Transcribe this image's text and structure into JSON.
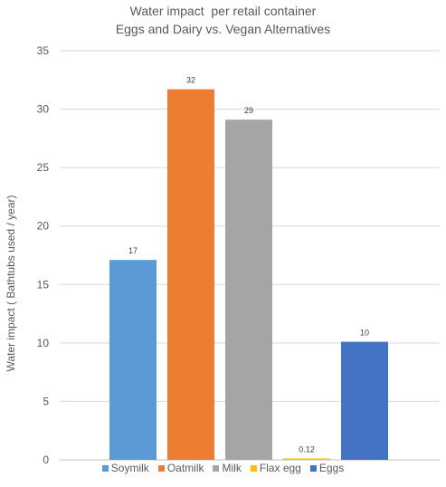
{
  "chart_data": {
    "type": "bar",
    "title_lines": [
      "Water impact  per retail container",
      "Eggs and Dairy vs. Vegan Alternatives"
    ],
    "ylabel": "Water impact  ( Bathtubs used / year)",
    "xlabel": "",
    "ylim": [
      0,
      35
    ],
    "yticks": [
      0,
      5,
      10,
      15,
      20,
      25,
      30,
      35
    ],
    "grid": true,
    "legend_position": "bottom",
    "categories": [
      "Soymilk",
      "Oatmilk",
      "Milk",
      "Flax egg",
      "Eggs"
    ],
    "values": [
      17.1,
      31.7,
      29.1,
      0.12,
      10.1
    ],
    "data_labels": [
      "17",
      "32",
      "29",
      "0.12",
      "10"
    ],
    "colors": [
      "#5B9BD5",
      "#ED7D31",
      "#A5A5A5",
      "#FFC000",
      "#4472C4"
    ]
  }
}
